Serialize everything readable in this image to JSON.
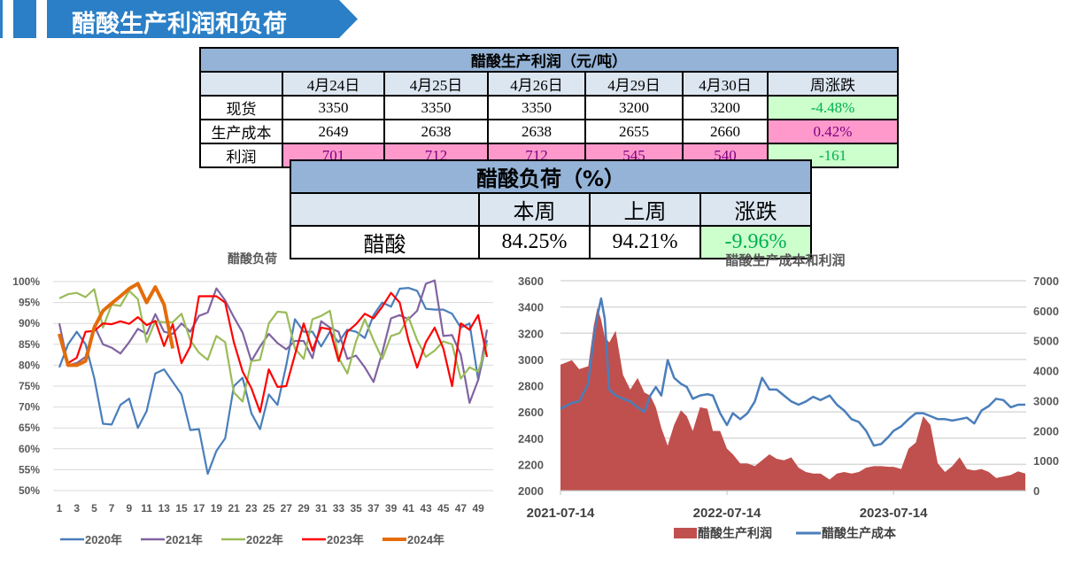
{
  "header": {
    "title": "醋酸生产利润和负荷"
  },
  "profit_table": {
    "title": "醋酸生产利润（元/吨）",
    "columns": [
      "",
      "4月24日",
      "4月25日",
      "4月26日",
      "4月29日",
      "4月30日",
      "周涨跌"
    ],
    "rows": [
      {
        "label": "现货",
        "values": [
          "3350",
          "3350",
          "3350",
          "3200",
          "3200"
        ],
        "change": "-4.48%"
      },
      {
        "label": "生产成本",
        "values": [
          "2649",
          "2638",
          "2638",
          "2655",
          "2660"
        ],
        "change": "0.42%"
      },
      {
        "label": "利润",
        "values": [
          "701",
          "712",
          "712",
          "545",
          "540"
        ],
        "change": "-161"
      }
    ]
  },
  "load_table": {
    "title": "醋酸负荷（%）",
    "columns": [
      "",
      "本周",
      "上周",
      "涨跌"
    ],
    "row": {
      "label": "醋酸",
      "this_week": "84.25%",
      "last_week": "94.21%",
      "change": "-9.96%"
    }
  },
  "chart_data": [
    {
      "type": "line",
      "title": "醋酸负荷",
      "ylim": [
        50,
        100
      ],
      "yticks": [
        "50%",
        "55%",
        "60%",
        "65%",
        "70%",
        "75%",
        "80%",
        "85%",
        "90%",
        "95%",
        "100%"
      ],
      "xticks": [
        "1",
        "3",
        "5",
        "7",
        "9",
        "11",
        "13",
        "15",
        "17",
        "19",
        "21",
        "23",
        "25",
        "27",
        "29",
        "31",
        "33",
        "35",
        "37",
        "39",
        "41",
        "43",
        "45",
        "47",
        "49"
      ],
      "x_unit": "week",
      "grid": "horizontal",
      "legend": "bottom",
      "series": [
        {
          "name": "2020年",
          "color": "#4a7ebb",
          "values": [
            79.5,
            85,
            88,
            85,
            77,
            66,
            65.8,
            70.5,
            72,
            65,
            69,
            78,
            79,
            76,
            73,
            64.5,
            64.7,
            54,
            59.5,
            62.5,
            75,
            77,
            68.5,
            64.7,
            73,
            70.5,
            80,
            91,
            88,
            88,
            84.5,
            88,
            85.5,
            88.5,
            88,
            86.5,
            92,
            95,
            94,
            98.3,
            98.5,
            97.8,
            93.5,
            93.3,
            93.3,
            92.3,
            89,
            90,
            76.5,
            86
          ]
        },
        {
          "name": "2021年",
          "color": "#8064a2",
          "values": [
            90,
            80,
            80.5,
            82,
            89.5,
            85,
            84.2,
            82.8,
            85.5,
            88.7,
            87.5,
            92.2,
            88,
            87.5,
            90,
            88,
            91.8,
            92.6,
            98.4,
            95.5,
            91.5,
            87.8,
            81,
            84.5,
            87.5,
            85.3,
            83.8,
            85.8,
            85.8,
            81.7,
            90.5,
            89,
            88,
            81.5,
            82.3,
            79.5,
            76,
            83,
            91.2,
            92,
            91,
            93,
            99.5,
            100.3,
            87,
            87.2,
            82.5,
            71,
            76.5,
            88.5
          ]
        },
        {
          "name": "2022年",
          "color": "#9bbb59",
          "values": [
            96,
            97,
            97.3,
            96.3,
            98.2,
            89,
            94.5,
            94.2,
            97.8,
            95.8,
            85.5,
            90.5,
            90.3,
            90.3,
            92.3,
            86,
            83,
            81.3,
            87,
            85.5,
            73.5,
            71.3,
            81,
            81.3,
            90,
            92.8,
            92.6,
            84,
            81.5,
            91,
            91.8,
            93,
            81.8,
            78,
            85.7,
            91,
            86,
            81.5,
            87,
            87.7,
            91.5,
            86,
            82,
            83.5,
            85.7,
            85,
            76.8,
            79.5,
            78.5,
            85
          ]
        },
        {
          "name": "2023年",
          "color": "#ff0000",
          "values": [
            87,
            80.5,
            81.8,
            88,
            88.2,
            90,
            89.8,
            90.5,
            89.9,
            91.5,
            89.6,
            90.6,
            84.6,
            89.8,
            80.5,
            84.5,
            96.5,
            96.5,
            96.5,
            95,
            85.5,
            78.5,
            74.5,
            68.8,
            79,
            74.8,
            75,
            82.5,
            90,
            83.5,
            89,
            88.6,
            81,
            88,
            89.8,
            92.3,
            91.2,
            94,
            97.3,
            95,
            86,
            79.4,
            85.5,
            89,
            84,
            75,
            90,
            88.5,
            92,
            82
          ]
        },
        {
          "name": "2024年",
          "color": "#e46c0a",
          "values": [
            87.5,
            80,
            80,
            81,
            89,
            93,
            94.8,
            96.5,
            98.3,
            99.5,
            95,
            98.7,
            94.5,
            84
          ]
        }
      ]
    },
    {
      "type": "area+line",
      "title": "醋酸生产成本和利润",
      "left_axis": {
        "ylim": [
          2000,
          3600
        ],
        "ticks": [
          "2000",
          "2200",
          "2400",
          "2600",
          "2800",
          "3000",
          "3200",
          "3400",
          "3600"
        ]
      },
      "right_axis": {
        "ylim": [
          0,
          7000
        ],
        "ticks": [
          "0",
          "1000",
          "2000",
          "3000",
          "4000",
          "5000",
          "6000",
          "7000"
        ]
      },
      "xlim": [
        "2021-07-14",
        "2024-04-30"
      ],
      "xticks": [
        "2021-07-14",
        "2022-07-14",
        "2023-07-14"
      ],
      "legend": "bottom",
      "grid": "horizontal",
      "series": [
        {
          "name": "醋酸生产利润",
          "type": "area",
          "axis": "right",
          "color": "#c0504d"
        },
        {
          "name": "醋酸生产成本",
          "type": "line",
          "axis": "left",
          "color": "#4a7ebb"
        }
      ],
      "points": [
        [
          "2021-07-14",
          2624,
          4200
        ],
        [
          "2021-08-08",
          2669,
          4350
        ],
        [
          "2021-08-24",
          2680,
          4050
        ],
        [
          "2021-09-13",
          2815,
          4150
        ],
        [
          "2021-09-25",
          3170,
          5500
        ],
        [
          "2021-10-03",
          3330,
          6100
        ],
        [
          "2021-10-11",
          3465,
          5700
        ],
        [
          "2021-10-19",
          3310,
          5130
        ],
        [
          "2021-10-29",
          2770,
          4940
        ],
        [
          "2021-11-12",
          2725,
          5330
        ],
        [
          "2021-11-28",
          2700,
          3860
        ],
        [
          "2021-12-14",
          2680,
          3370
        ],
        [
          "2021-12-30",
          2635,
          3760
        ],
        [
          "2022-01-14",
          2600,
          3270
        ],
        [
          "2022-01-27",
          2725,
          3170
        ],
        [
          "2022-02-08",
          2790,
          2780
        ],
        [
          "2022-02-20",
          2725,
          2090
        ],
        [
          "2022-03-06",
          2995,
          1500
        ],
        [
          "2022-03-20",
          2860,
          2190
        ],
        [
          "2022-04-04",
          2815,
          2680
        ],
        [
          "2022-04-17",
          2790,
          2480
        ],
        [
          "2022-04-30",
          2700,
          1990
        ],
        [
          "2022-05-16",
          2725,
          2780
        ],
        [
          "2022-06-01",
          2735,
          2730
        ],
        [
          "2022-06-13",
          2725,
          1990
        ],
        [
          "2022-06-29",
          2590,
          1990
        ],
        [
          "2022-07-14",
          2500,
          1400
        ],
        [
          "2022-07-27",
          2590,
          1210
        ],
        [
          "2022-08-12",
          2545,
          910
        ],
        [
          "2022-08-28",
          2590,
          910
        ],
        [
          "2022-09-13",
          2680,
          815
        ],
        [
          "2022-09-29",
          2860,
          1010
        ],
        [
          "2022-10-15",
          2770,
          1210
        ],
        [
          "2022-10-31",
          2770,
          1060
        ],
        [
          "2022-11-16",
          2725,
          1010
        ],
        [
          "2022-12-02",
          2680,
          1110
        ],
        [
          "2022-12-18",
          2655,
          765
        ],
        [
          "2023-01-03",
          2680,
          620
        ],
        [
          "2023-01-19",
          2715,
          570
        ],
        [
          "2023-02-04",
          2690,
          570
        ],
        [
          "2023-02-24",
          2725,
          370
        ],
        [
          "2023-03-12",
          2655,
          570
        ],
        [
          "2023-03-28",
          2610,
          620
        ],
        [
          "2023-04-13",
          2545,
          570
        ],
        [
          "2023-04-29",
          2523,
          620
        ],
        [
          "2023-05-15",
          2455,
          765
        ],
        [
          "2023-06-01",
          2343,
          815
        ],
        [
          "2023-06-17",
          2355,
          815
        ],
        [
          "2023-07-03",
          2410,
          795
        ],
        [
          "2023-07-14",
          2455,
          795
        ],
        [
          "2023-07-31",
          2490,
          720
        ],
        [
          "2023-08-16",
          2545,
          1400
        ],
        [
          "2023-09-01",
          2590,
          1600
        ],
        [
          "2023-09-17",
          2590,
          2480
        ],
        [
          "2023-10-03",
          2568,
          2190
        ],
        [
          "2023-10-19",
          2545,
          910
        ],
        [
          "2023-11-04",
          2545,
          620
        ],
        [
          "2023-11-20",
          2534,
          815
        ],
        [
          "2023-12-06",
          2545,
          1110
        ],
        [
          "2023-12-22",
          2556,
          720
        ],
        [
          "2024-01-07",
          2512,
          670
        ],
        [
          "2024-01-23",
          2610,
          720
        ],
        [
          "2024-02-08",
          2645,
          620
        ],
        [
          "2024-02-24",
          2700,
          420
        ],
        [
          "2024-03-11",
          2690,
          470
        ],
        [
          "2024-03-27",
          2635,
          520
        ],
        [
          "2024-04-12",
          2655,
          640
        ],
        [
          "2024-04-28",
          2655,
          570
        ]
      ]
    }
  ]
}
